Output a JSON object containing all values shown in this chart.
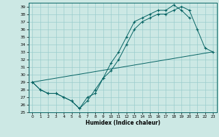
{
  "title": "",
  "xlabel": "Humidex (Indice chaleur)",
  "ylabel": "",
  "bg_color": "#cce8e4",
  "line_color": "#006060",
  "grid_color": "#99cccc",
  "xlim": [
    -0.5,
    23.5
  ],
  "ylim": [
    25,
    39.5
  ],
  "xticks": [
    0,
    1,
    2,
    3,
    4,
    5,
    6,
    7,
    8,
    9,
    10,
    11,
    12,
    13,
    14,
    15,
    16,
    17,
    18,
    19,
    20,
    21,
    22,
    23
  ],
  "yticks": [
    25,
    26,
    27,
    28,
    29,
    30,
    31,
    32,
    33,
    34,
    35,
    36,
    37,
    38,
    39
  ],
  "series": [
    {
      "x": [
        0,
        1,
        2,
        3,
        4,
        5,
        6,
        7,
        8,
        9,
        10,
        11,
        12,
        13,
        14,
        15,
        16,
        17,
        18,
        19,
        20,
        21,
        22,
        23
      ],
      "y": [
        29,
        28,
        27.5,
        27.5,
        27,
        26.5,
        25.5,
        26.5,
        28,
        29.5,
        30.5,
        32,
        34,
        36,
        37,
        37.5,
        38,
        38,
        38.5,
        39,
        38.5,
        36,
        33.5,
        33
      ],
      "has_markers": true
    },
    {
      "x": [
        0,
        1,
        2,
        3,
        4,
        5,
        6,
        7,
        8,
        9,
        10,
        11,
        12,
        13,
        14,
        15,
        16,
        17,
        18,
        19,
        20
      ],
      "y": [
        29,
        28,
        27.5,
        27.5,
        27,
        26.5,
        25.5,
        27,
        27.5,
        29.5,
        31.5,
        33,
        35,
        37,
        37.5,
        38,
        38.5,
        38.5,
        39.2,
        38.5,
        37.5
      ],
      "has_markers": true
    },
    {
      "x": [
        0,
        23
      ],
      "y": [
        29,
        33
      ],
      "has_markers": false
    }
  ]
}
